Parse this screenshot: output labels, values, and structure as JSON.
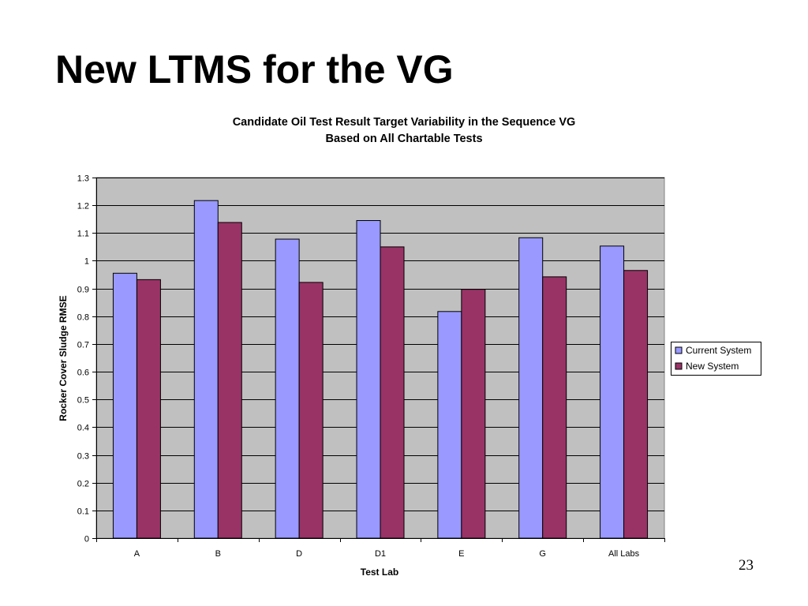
{
  "slide": {
    "title": "New LTMS for the VG",
    "page_number": "23"
  },
  "chart_data": {
    "type": "bar",
    "title_lines": [
      "Candidate Oil Test Result Target Variability in the Sequence VG",
      "Based on All Chartable Tests"
    ],
    "xlabel": "Test Lab",
    "ylabel": "Rocker Cover Sludge RMSE",
    "categories": [
      "A",
      "B",
      "D",
      "D1",
      "E",
      "G",
      "All Labs"
    ],
    "series": [
      {
        "name": "Current System",
        "color": "#9999ff",
        "values": [
          0.955,
          1.217,
          1.078,
          1.145,
          0.817,
          1.083,
          1.053
        ]
      },
      {
        "name": "New System",
        "color": "#993366",
        "values": [
          0.932,
          1.138,
          0.922,
          1.05,
          0.897,
          0.942,
          0.965
        ]
      }
    ],
    "ylim": [
      0,
      1.3
    ],
    "yticks": [
      "0",
      "0.1",
      "0.2",
      "0.3",
      "0.4",
      "0.5",
      "0.6",
      "0.7",
      "0.8",
      "0.9",
      "1",
      "1.1",
      "1.2",
      "1.3"
    ],
    "grid": true,
    "plot_background": "#c0c0c0",
    "legend_position": "right"
  }
}
